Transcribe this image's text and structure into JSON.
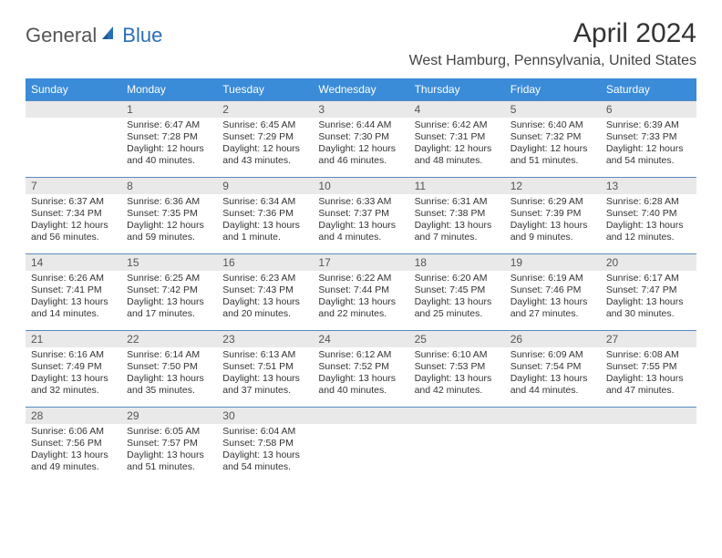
{
  "branding": {
    "part1": "General",
    "part2": "Blue"
  },
  "title": "April 2024",
  "location": "West Hamburg, Pennsylvania, United States",
  "weekdays": [
    "Sunday",
    "Monday",
    "Tuesday",
    "Wednesday",
    "Thursday",
    "Friday",
    "Saturday"
  ],
  "colors": {
    "header_bg": "#3a8bd8",
    "header_text": "#ffffff",
    "daynum_bg": "#e9e9e9",
    "cell_border": "#5a8abf",
    "brand_blue": "#2a6fb5",
    "text": "#333333"
  },
  "weeks": [
    [
      {
        "n": "",
        "sr": "",
        "ss": "",
        "dl": ""
      },
      {
        "n": "1",
        "sr": "Sunrise: 6:47 AM",
        "ss": "Sunset: 7:28 PM",
        "dl": "Daylight: 12 hours and 40 minutes."
      },
      {
        "n": "2",
        "sr": "Sunrise: 6:45 AM",
        "ss": "Sunset: 7:29 PM",
        "dl": "Daylight: 12 hours and 43 minutes."
      },
      {
        "n": "3",
        "sr": "Sunrise: 6:44 AM",
        "ss": "Sunset: 7:30 PM",
        "dl": "Daylight: 12 hours and 46 minutes."
      },
      {
        "n": "4",
        "sr": "Sunrise: 6:42 AM",
        "ss": "Sunset: 7:31 PM",
        "dl": "Daylight: 12 hours and 48 minutes."
      },
      {
        "n": "5",
        "sr": "Sunrise: 6:40 AM",
        "ss": "Sunset: 7:32 PM",
        "dl": "Daylight: 12 hours and 51 minutes."
      },
      {
        "n": "6",
        "sr": "Sunrise: 6:39 AM",
        "ss": "Sunset: 7:33 PM",
        "dl": "Daylight: 12 hours and 54 minutes."
      }
    ],
    [
      {
        "n": "7",
        "sr": "Sunrise: 6:37 AM",
        "ss": "Sunset: 7:34 PM",
        "dl": "Daylight: 12 hours and 56 minutes."
      },
      {
        "n": "8",
        "sr": "Sunrise: 6:36 AM",
        "ss": "Sunset: 7:35 PM",
        "dl": "Daylight: 12 hours and 59 minutes."
      },
      {
        "n": "9",
        "sr": "Sunrise: 6:34 AM",
        "ss": "Sunset: 7:36 PM",
        "dl": "Daylight: 13 hours and 1 minute."
      },
      {
        "n": "10",
        "sr": "Sunrise: 6:33 AM",
        "ss": "Sunset: 7:37 PM",
        "dl": "Daylight: 13 hours and 4 minutes."
      },
      {
        "n": "11",
        "sr": "Sunrise: 6:31 AM",
        "ss": "Sunset: 7:38 PM",
        "dl": "Daylight: 13 hours and 7 minutes."
      },
      {
        "n": "12",
        "sr": "Sunrise: 6:29 AM",
        "ss": "Sunset: 7:39 PM",
        "dl": "Daylight: 13 hours and 9 minutes."
      },
      {
        "n": "13",
        "sr": "Sunrise: 6:28 AM",
        "ss": "Sunset: 7:40 PM",
        "dl": "Daylight: 13 hours and 12 minutes."
      }
    ],
    [
      {
        "n": "14",
        "sr": "Sunrise: 6:26 AM",
        "ss": "Sunset: 7:41 PM",
        "dl": "Daylight: 13 hours and 14 minutes."
      },
      {
        "n": "15",
        "sr": "Sunrise: 6:25 AM",
        "ss": "Sunset: 7:42 PM",
        "dl": "Daylight: 13 hours and 17 minutes."
      },
      {
        "n": "16",
        "sr": "Sunrise: 6:23 AM",
        "ss": "Sunset: 7:43 PM",
        "dl": "Daylight: 13 hours and 20 minutes."
      },
      {
        "n": "17",
        "sr": "Sunrise: 6:22 AM",
        "ss": "Sunset: 7:44 PM",
        "dl": "Daylight: 13 hours and 22 minutes."
      },
      {
        "n": "18",
        "sr": "Sunrise: 6:20 AM",
        "ss": "Sunset: 7:45 PM",
        "dl": "Daylight: 13 hours and 25 minutes."
      },
      {
        "n": "19",
        "sr": "Sunrise: 6:19 AM",
        "ss": "Sunset: 7:46 PM",
        "dl": "Daylight: 13 hours and 27 minutes."
      },
      {
        "n": "20",
        "sr": "Sunrise: 6:17 AM",
        "ss": "Sunset: 7:47 PM",
        "dl": "Daylight: 13 hours and 30 minutes."
      }
    ],
    [
      {
        "n": "21",
        "sr": "Sunrise: 6:16 AM",
        "ss": "Sunset: 7:49 PM",
        "dl": "Daylight: 13 hours and 32 minutes."
      },
      {
        "n": "22",
        "sr": "Sunrise: 6:14 AM",
        "ss": "Sunset: 7:50 PM",
        "dl": "Daylight: 13 hours and 35 minutes."
      },
      {
        "n": "23",
        "sr": "Sunrise: 6:13 AM",
        "ss": "Sunset: 7:51 PM",
        "dl": "Daylight: 13 hours and 37 minutes."
      },
      {
        "n": "24",
        "sr": "Sunrise: 6:12 AM",
        "ss": "Sunset: 7:52 PM",
        "dl": "Daylight: 13 hours and 40 minutes."
      },
      {
        "n": "25",
        "sr": "Sunrise: 6:10 AM",
        "ss": "Sunset: 7:53 PM",
        "dl": "Daylight: 13 hours and 42 minutes."
      },
      {
        "n": "26",
        "sr": "Sunrise: 6:09 AM",
        "ss": "Sunset: 7:54 PM",
        "dl": "Daylight: 13 hours and 44 minutes."
      },
      {
        "n": "27",
        "sr": "Sunrise: 6:08 AM",
        "ss": "Sunset: 7:55 PM",
        "dl": "Daylight: 13 hours and 47 minutes."
      }
    ],
    [
      {
        "n": "28",
        "sr": "Sunrise: 6:06 AM",
        "ss": "Sunset: 7:56 PM",
        "dl": "Daylight: 13 hours and 49 minutes."
      },
      {
        "n": "29",
        "sr": "Sunrise: 6:05 AM",
        "ss": "Sunset: 7:57 PM",
        "dl": "Daylight: 13 hours and 51 minutes."
      },
      {
        "n": "30",
        "sr": "Sunrise: 6:04 AM",
        "ss": "Sunset: 7:58 PM",
        "dl": "Daylight: 13 hours and 54 minutes."
      },
      {
        "n": "",
        "sr": "",
        "ss": "",
        "dl": ""
      },
      {
        "n": "",
        "sr": "",
        "ss": "",
        "dl": ""
      },
      {
        "n": "",
        "sr": "",
        "ss": "",
        "dl": ""
      },
      {
        "n": "",
        "sr": "",
        "ss": "",
        "dl": ""
      }
    ]
  ]
}
